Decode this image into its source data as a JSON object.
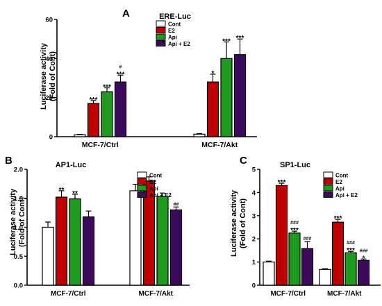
{
  "legend": {
    "entries": [
      {
        "label": "Cont",
        "color": "#ffffff"
      },
      {
        "label": "E2",
        "color": "#c00000"
      },
      {
        "label": "Api",
        "color": "#1e9a1e"
      },
      {
        "label": "Api + E2",
        "color": "#3c0a5a"
      }
    ]
  },
  "chart_data": [
    {
      "type": "bar",
      "panel_letter": "A",
      "title": "ERE-Luc",
      "ylabel": "Luciferase activity\n(Fold of Cont)",
      "xlabel": "",
      "ylim": [
        0,
        60
      ],
      "yticks": [
        0,
        20,
        40,
        60
      ],
      "categories": [
        "MCF-7/Ctrl",
        "MCF-7/Akt"
      ],
      "legend_position": "top-left",
      "grid": false,
      "series": [
        {
          "name": "Cont",
          "color": "#ffffff",
          "values": [
            1.0,
            1.3
          ],
          "errors": [
            0.2,
            0.3
          ],
          "annotations": [
            "",
            ""
          ]
        },
        {
          "name": "E2",
          "color": "#c00000",
          "values": [
            17,
            28
          ],
          "errors": [
            1.5,
            4.0
          ],
          "annotations": [
            "***",
            "*"
          ]
        },
        {
          "name": "Api",
          "color": "#1e9a1e",
          "values": [
            23,
            40
          ],
          "errors": [
            2.0,
            8.5
          ],
          "annotations": [
            "***",
            "***"
          ]
        },
        {
          "name": "Api + E2",
          "color": "#3c0a5a",
          "values": [
            28,
            42
          ],
          "errors": [
            3.5,
            8.0
          ],
          "annotations": [
            "#\n***",
            "***"
          ]
        }
      ]
    },
    {
      "type": "bar",
      "panel_letter": "B",
      "title": "AP1-Luc",
      "ylabel": "Luciferase activity\n(Fold of Cont)",
      "xlabel": "",
      "ylim": [
        0,
        2.0
      ],
      "yticks": [
        0.0,
        0.5,
        1.0,
        1.5,
        2.0
      ],
      "categories": [
        "MCF-7/Ctrl",
        "MCF-7/Akt"
      ],
      "legend_position": "top-right",
      "grid": false,
      "series": [
        {
          "name": "Cont",
          "color": "#ffffff",
          "values": [
            1.0,
            1.63
          ],
          "errors": [
            0.09,
            0.11
          ],
          "annotations": [
            "",
            ""
          ]
        },
        {
          "name": "E2",
          "color": "#c00000",
          "values": [
            1.52,
            1.8
          ],
          "errors": [
            0.11,
            0.07
          ],
          "annotations": [
            "**",
            ""
          ]
        },
        {
          "name": "Api",
          "color": "#1e9a1e",
          "values": [
            1.49,
            1.53
          ],
          "errors": [
            0.08,
            0.06
          ],
          "annotations": [
            "**",
            ""
          ]
        },
        {
          "name": "Api + E2",
          "color": "#3c0a5a",
          "values": [
            1.18,
            1.3
          ],
          "errors": [
            0.1,
            0.05
          ],
          "annotations": [
            "",
            "##"
          ]
        }
      ]
    },
    {
      "type": "bar",
      "panel_letter": "C",
      "title": "SP1-Luc",
      "ylabel": "Luciferase activity\n(Fold of Cont)",
      "xlabel": "",
      "ylim": [
        0,
        5
      ],
      "yticks": [
        0,
        1,
        2,
        3,
        4,
        5
      ],
      "categories": [
        "MCF-7/Ctrl",
        "MCF-7/Akt"
      ],
      "legend_position": "top-right",
      "grid": false,
      "series": [
        {
          "name": "Cont",
          "color": "#ffffff",
          "values": [
            1.0,
            0.68
          ],
          "errors": [
            0.04,
            0.03
          ],
          "annotations": [
            "",
            ""
          ]
        },
        {
          "name": "E2",
          "color": "#c00000",
          "values": [
            4.3,
            2.72
          ],
          "errors": [
            0.1,
            0.12
          ],
          "annotations": [
            "***",
            "***"
          ]
        },
        {
          "name": "Api",
          "color": "#1e9a1e",
          "values": [
            2.25,
            1.4
          ],
          "errors": [
            0.08,
            0.06
          ],
          "annotations": [
            "###\n***",
            "###\n***"
          ]
        },
        {
          "name": "Api + E2",
          "color": "#3c0a5a",
          "values": [
            1.58,
            1.07
          ],
          "errors": [
            0.3,
            0.06
          ],
          "annotations": [
            "###",
            "###\n*"
          ]
        }
      ]
    }
  ]
}
